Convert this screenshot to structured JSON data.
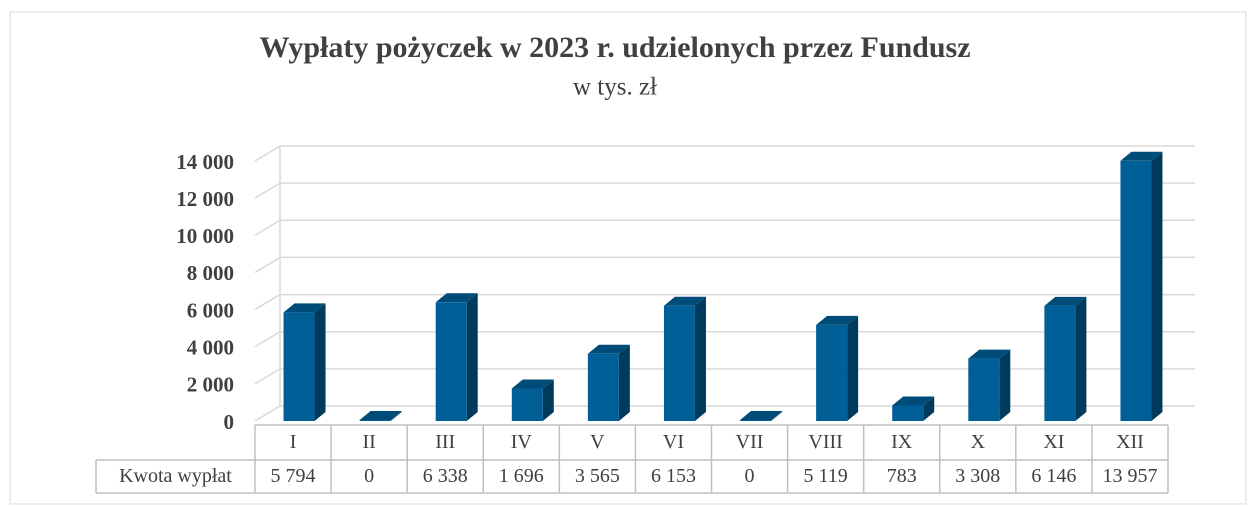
{
  "chart_data": {
    "type": "bar3d",
    "title": "Wypłaty pożyczek w 2023 r. udzielonych przez Fundusz",
    "subtitle": "w tys. zł",
    "categories": [
      "I",
      "II",
      "III",
      "IV",
      "V",
      "VI",
      "VII",
      "VIII",
      "IX",
      "X",
      "XI",
      "XII"
    ],
    "series": [
      {
        "name": "Kwota wypłat",
        "color": "#005f96",
        "values": [
          5794,
          0,
          6338,
          1696,
          3565,
          6153,
          0,
          5119,
          783,
          3308,
          6146,
          13957
        ],
        "value_labels": [
          "5 794",
          "0",
          "6 338",
          "1 696",
          "3 565",
          "6 153",
          "0",
          "5 119",
          "783",
          "3 308",
          "6 146",
          "13 957"
        ]
      }
    ],
    "ylim": [
      0,
      14000
    ],
    "yticks": [
      0,
      {
        "value": 2000,
        "label": "2 000"
      },
      {
        "value": 4000,
        "label": "4 000"
      },
      {
        "value": 6000,
        "label": "6 000"
      },
      {
        "value": 8000,
        "label": "8 000"
      },
      {
        "value": 10000,
        "label": "10 000"
      },
      {
        "value": 12000,
        "label": "12 000"
      },
      {
        "value": 14000,
        "label": "14 000"
      }
    ],
    "grid": true
  }
}
